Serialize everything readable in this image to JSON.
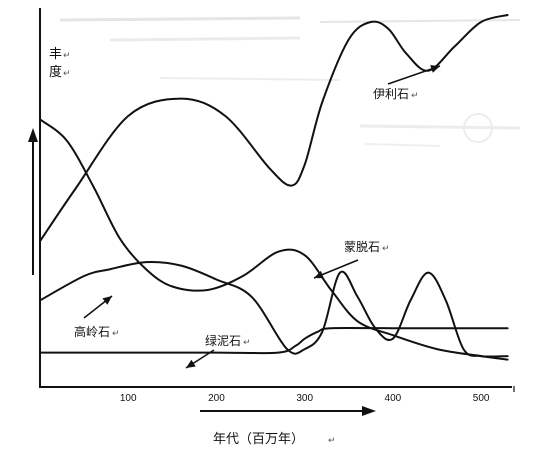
{
  "chart_data": {
    "type": "line",
    "title": "",
    "ylabel_top": "丰",
    "ylabel_bottom": "度",
    "xlabel": "年代（百万年）",
    "xlim": [
      0,
      535
    ],
    "x_ticks": [
      100,
      200,
      300,
      400,
      500
    ],
    "y_scale": "relative abundance (no numeric scale shown)",
    "grid": false,
    "series": [
      {
        "name": "伊利石",
        "x": [
          0,
          40,
          100,
          160,
          210,
          260,
          285,
          300,
          320,
          350,
          375,
          395,
          415,
          440,
          470,
          500,
          530
        ],
        "y": [
          0.37,
          0.52,
          0.73,
          0.78,
          0.73,
          0.58,
          0.53,
          0.59,
          0.77,
          0.95,
          1.0,
          0.98,
          0.91,
          0.86,
          0.93,
          1.0,
          1.02
        ]
      },
      {
        "name": "高岭石",
        "x": [
          0,
          30,
          60,
          90,
          120,
          150,
          190,
          230,
          270,
          300,
          330,
          360,
          400,
          450,
          500,
          530
        ],
        "y": [
          0.72,
          0.66,
          0.53,
          0.38,
          0.29,
          0.24,
          0.23,
          0.27,
          0.34,
          0.33,
          0.23,
          0.14,
          0.1,
          0.06,
          0.04,
          0.03
        ]
      },
      {
        "name": "蒙脱石",
        "x": [
          0,
          50,
          80,
          120,
          160,
          200,
          240,
          280,
          300,
          320,
          340,
          360,
          380,
          400,
          420,
          440,
          460,
          480,
          500,
          530
        ],
        "y": [
          0.2,
          0.27,
          0.29,
          0.31,
          0.3,
          0.26,
          0.21,
          0.06,
          0.06,
          0.11,
          0.28,
          0.21,
          0.12,
          0.09,
          0.2,
          0.28,
          0.2,
          0.06,
          0.04,
          0.04
        ]
      },
      {
        "name": "绿泥石",
        "x": [
          0,
          100,
          200,
          270,
          290,
          300,
          315,
          330,
          400,
          500,
          530
        ],
        "y": [
          0.05,
          0.05,
          0.05,
          0.05,
          0.07,
          0.09,
          0.11,
          0.12,
          0.12,
          0.12,
          0.12
        ]
      }
    ]
  }
}
